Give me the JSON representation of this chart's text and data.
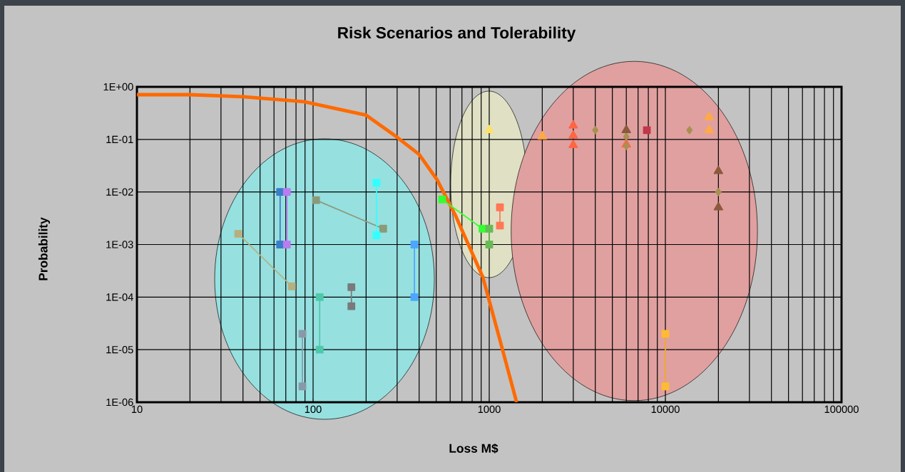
{
  "chart_data": {
    "type": "line",
    "title": "Risk Scenarios and Tolerability",
    "xlabel": "Loss M$",
    "ylabel": "Probability",
    "log": "xy",
    "grid": true,
    "xlim": [
      10,
      100000
    ],
    "ylim": [
      1e-06,
      1
    ],
    "xticks": [
      10,
      100,
      1000,
      10000,
      100000
    ],
    "yticks": [
      {
        "value": 1,
        "label": "1E+00"
      },
      {
        "value": 0.1,
        "label": "1E-01"
      },
      {
        "value": 0.01,
        "label": "1E-02"
      },
      {
        "value": 0.001,
        "label": "1E-03"
      },
      {
        "value": 0.0001,
        "label": "1E-04"
      },
      {
        "value": 1e-05,
        "label": "1E-05"
      },
      {
        "value": 1e-06,
        "label": "1E-06"
      }
    ],
    "series": [
      {
        "color": "#ff6a00",
        "marker": "none",
        "x": [
          10,
          20,
          40,
          89,
          200,
          300,
          400,
          506,
          640,
          920,
          1140,
          1430
        ],
        "values": [
          0.71,
          0.71,
          0.65,
          0.52,
          0.29,
          0.11,
          0.052,
          0.017,
          0.0037,
          0.00024,
          1.7e-05,
          1e-06
        ]
      },
      {
        "color": "#3a7cc8",
        "marker": "square",
        "x": [
          65,
          65
        ],
        "values": [
          0.01,
          0.001
        ]
      },
      {
        "color": "#b87cf0",
        "marker": "square",
        "x": [
          71,
          71
        ],
        "values": [
          0.01,
          0.001
        ]
      },
      {
        "color": "#b5b07f",
        "marker": "square",
        "x": [
          37.6,
          75.7
        ],
        "values": [
          0.0016,
          0.00016
        ]
      },
      {
        "color": "#8a9a7a",
        "marker": "square",
        "x": [
          104,
          250
        ],
        "values": [
          0.007,
          0.002
        ]
      },
      {
        "color": "#33ffff",
        "marker": "square",
        "x": [
          229,
          229
        ],
        "values": [
          0.015,
          0.0015
        ]
      },
      {
        "color": "#4da6ff",
        "marker": "square",
        "x": [
          376,
          376
        ],
        "values": [
          0.001,
          0.0001
        ]
      },
      {
        "color": "#7a7a7a",
        "marker": "square",
        "x": [
          165,
          165
        ],
        "values": [
          0.000155,
          6.7e-05
        ]
      },
      {
        "color": "#4dc9a9",
        "marker": "square",
        "x": [
          109,
          109
        ],
        "values": [
          0.0001,
          1e-05
        ]
      },
      {
        "color": "#8899aa",
        "marker": "square",
        "x": [
          87,
          87
        ],
        "values": [
          2e-05,
          2e-06
        ]
      },
      {
        "color": "#33ff33",
        "marker": "square",
        "x": [
          540,
          915
        ],
        "values": [
          0.0072,
          0.002
        ]
      },
      {
        "color": "#66bb55",
        "marker": "square",
        "x": [
          1000,
          1000
        ],
        "values": [
          0.002,
          0.001
        ]
      },
      {
        "color": "#ff7755",
        "marker": "square",
        "x": [
          1150,
          1150
        ],
        "values": [
          0.0051,
          0.0023
        ]
      },
      {
        "color": "#ffbb33",
        "marker": "square",
        "x": [
          10000,
          10000
        ],
        "values": [
          2e-05,
          2e-06
        ]
      },
      {
        "type": "scatter",
        "color": "#ffe066",
        "marker": "triangle",
        "x": [
          1000
        ],
        "values": [
          0.15
        ]
      },
      {
        "type": "scatter",
        "color": "#ffaa44",
        "marker": "triangle",
        "x": [
          2000,
          17700,
          17700
        ],
        "values": [
          0.114,
          0.264,
          0.15
        ]
      },
      {
        "type": "scatter",
        "color": "#ff6644",
        "marker": "triangle",
        "x": [
          3000,
          3000,
          3000,
          6000
        ],
        "values": [
          0.184,
          0.118,
          0.078,
          0.08
        ]
      },
      {
        "type": "scatter",
        "color": "#a89050",
        "marker": "diamond",
        "x": [
          4000,
          6000,
          6000,
          13700,
          20000
        ],
        "values": [
          0.15,
          0.113,
          0.075,
          0.15,
          0.01
        ]
      },
      {
        "type": "scatter",
        "color": "#8b5a3c",
        "marker": "triangle",
        "x": [
          6000,
          20000,
          20000
        ],
        "values": [
          0.15,
          0.025,
          0.0051
        ]
      },
      {
        "type": "scatter",
        "color": "#c0384a",
        "marker": "square",
        "x": [
          7850
        ],
        "values": [
          0.15
        ]
      }
    ]
  }
}
